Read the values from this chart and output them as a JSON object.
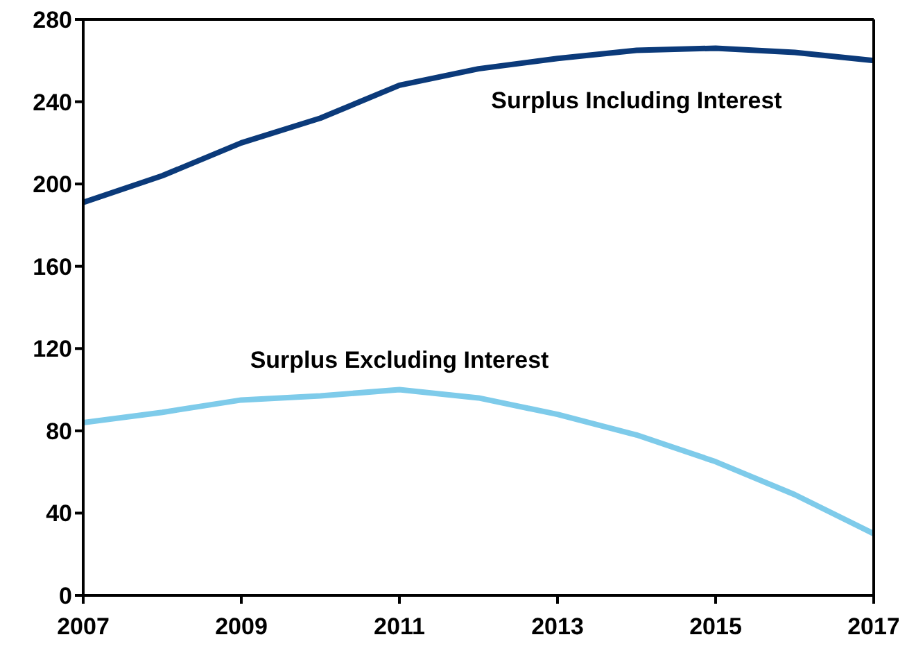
{
  "chart_data": {
    "type": "line",
    "x": [
      2007,
      2008,
      2009,
      2010,
      2011,
      2012,
      2013,
      2014,
      2015,
      2016,
      2017
    ],
    "series": [
      {
        "name": "Surplus Including Interest",
        "color": "#0b3a7a",
        "values": [
          191,
          204,
          220,
          232,
          248,
          256,
          261,
          265,
          266,
          264,
          260
        ]
      },
      {
        "name": "Surplus Excluding Interest",
        "color": "#7ecbea",
        "values": [
          84,
          89,
          95,
          97,
          100,
          96,
          88,
          78,
          65,
          49,
          30
        ]
      }
    ],
    "xlim": [
      2007,
      2017
    ],
    "xticks": [
      2007,
      2009,
      2011,
      2013,
      2015,
      2017
    ],
    "ylim": [
      0,
      280
    ],
    "yticks": [
      0,
      40,
      80,
      120,
      160,
      200,
      240,
      280
    ],
    "marker": "none",
    "line_style": "solid"
  }
}
